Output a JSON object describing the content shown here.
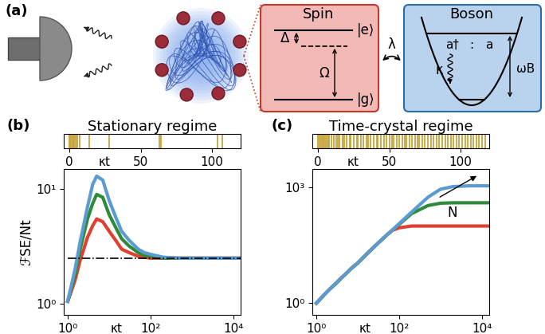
{
  "panel_labels": [
    "(a)",
    "(b)",
    "(c)"
  ],
  "diagram": {
    "spin_box": {
      "title": "Spin",
      "excited": "|e⟩",
      "ground": "|g⟩",
      "detuning": "Δ",
      "drive": "Ω"
    },
    "coupling": "λ",
    "boson_box": {
      "title": "Boson",
      "creation": "a†",
      "dots": ":",
      "annihilation": "a",
      "decay": "κ",
      "frequency": "ωB"
    }
  },
  "chart_data": [
    {
      "type": "raster",
      "title": "Stationary regime",
      "xlabel": "κt",
      "x": [
        0,
        0.5,
        1.2,
        2,
        2.8,
        3.5,
        4.5,
        5.5,
        7,
        14,
        28,
        63,
        64,
        104,
        107
      ],
      "xlim": [
        -4,
        120
      ],
      "xticks": [
        0,
        50,
        100
      ],
      "tick_labels": "x",
      "color": "#c8a43c"
    },
    {
      "type": "line",
      "xlabel": "κt",
      "ylabel": "ℱSE/Nt",
      "log": true,
      "x": [
        1,
        1.5,
        2,
        3,
        4,
        5,
        7,
        10,
        15,
        20,
        30,
        50,
        70,
        100,
        200,
        500,
        1000,
        2000,
        5000,
        10000,
        15000
      ],
      "xlim": [
        0.8,
        15000
      ],
      "xticks": [
        {
          "value": 1,
          "label": "10⁰"
        },
        {
          "value": 100,
          "label": "10²"
        },
        {
          "value": 10000,
          "label": "10⁴"
        }
      ],
      "ylim": [
        0.8,
        15
      ],
      "yticks": [
        {
          "value": 1,
          "label": "10⁰"
        },
        {
          "value": 10,
          "label": "10¹"
        }
      ],
      "series": [
        {
          "color": "#e0402f",
          "line_style": "solid",
          "values": [
            1.05,
            1.6,
            2.4,
            3.8,
            4.8,
            5.5,
            5.2,
            4.3,
            3.5,
            3.0,
            2.8,
            2.6,
            2.55,
            2.5,
            2.5,
            2.5,
            2.5,
            2.5,
            2.5,
            2.5,
            2.5
          ]
        },
        {
          "color": "#2e8b3a",
          "line_style": "solid",
          "values": [
            1.05,
            1.8,
            3,
            5.5,
            7.5,
            9,
            8.5,
            6,
            4.5,
            3.7,
            3.2,
            2.8,
            2.65,
            2.6,
            2.5,
            2.5,
            2.5,
            2.5,
            2.5,
            2.5,
            2.5
          ]
        },
        {
          "color": "#5b9bd0",
          "line_style": "solid",
          "values": [
            1.05,
            2.0,
            3.5,
            7,
            11,
            13,
            12,
            8,
            5.5,
            4.3,
            3.6,
            3.0,
            2.8,
            2.7,
            2.55,
            2.5,
            2.5,
            2.5,
            2.5,
            2.5,
            2.5
          ]
        },
        {
          "color": "#000000",
          "line_style": "dashdot",
          "values": [
            2.5,
            2.5,
            2.5,
            2.5,
            2.5,
            2.5,
            2.5,
            2.5,
            2.5,
            2.5,
            2.5,
            2.5,
            2.5,
            2.5,
            2.5,
            2.5,
            2.5,
            2.5,
            2.5,
            2.5,
            2.5
          ]
        }
      ]
    },
    {
      "type": "raster",
      "title": "Time-crystal regime",
      "xlabel": "κt",
      "x": [
        0,
        1,
        2,
        3,
        4,
        5,
        6,
        7,
        8,
        9.5,
        11,
        12.5,
        14,
        15,
        17,
        18.5,
        20,
        22,
        23,
        25,
        27,
        28,
        30,
        32,
        34,
        35,
        37,
        39,
        41,
        42,
        44,
        46,
        48,
        50,
        52,
        53,
        55,
        57,
        59,
        61,
        62,
        64,
        66,
        68,
        70,
        71,
        73,
        75,
        77,
        79,
        81,
        83,
        85,
        87,
        89,
        91,
        93,
        95,
        97,
        99,
        101,
        103,
        105,
        107,
        109,
        111,
        113,
        115,
        117
      ],
      "xlim": [
        -4,
        120
      ],
      "xticks": [
        0,
        50,
        100
      ],
      "tick_labels": "x",
      "color": "#c8a43c"
    },
    {
      "type": "line",
      "xlabel": "κt",
      "log": true,
      "annotation": "N",
      "x": [
        1,
        1.5,
        2,
        3,
        4,
        5,
        7,
        10,
        15,
        20,
        30,
        50,
        70,
        100,
        200,
        500,
        1000,
        2000,
        5000,
        10000,
        15000
      ],
      "xlim": [
        0.8,
        15000
      ],
      "xticks": [
        {
          "value": 1,
          "label": "10⁰"
        },
        {
          "value": 100,
          "label": "10²"
        },
        {
          "value": 10000,
          "label": "10⁴"
        }
      ],
      "ylim": [
        0.5,
        3000
      ],
      "yticks": [
        {
          "value": 1,
          "label": "10⁰"
        },
        {
          "value": 1000,
          "label": "10³"
        }
      ],
      "series": [
        {
          "color": "#e0402f",
          "line_style": "solid",
          "values": [
            1,
            1.6,
            2.2,
            3.3,
            4.5,
            5.6,
            8,
            11,
            17,
            23,
            35,
            58,
            78,
            90,
            100,
            100,
            100,
            100,
            100,
            100,
            100
          ]
        },
        {
          "color": "#2e8b3a",
          "line_style": "solid",
          "values": [
            1,
            1.6,
            2.2,
            3.3,
            4.5,
            5.6,
            8,
            11,
            17,
            23,
            35,
            58,
            80,
            110,
            210,
            340,
            390,
            400,
            400,
            400,
            400
          ]
        },
        {
          "color": "#5b9bd0",
          "line_style": "solid",
          "values": [
            1,
            1.6,
            2.2,
            3.3,
            4.5,
            5.6,
            8,
            11,
            17,
            23,
            35,
            58,
            80,
            115,
            230,
            560,
            900,
            1050,
            1100,
            1100,
            1100
          ]
        }
      ]
    }
  ]
}
